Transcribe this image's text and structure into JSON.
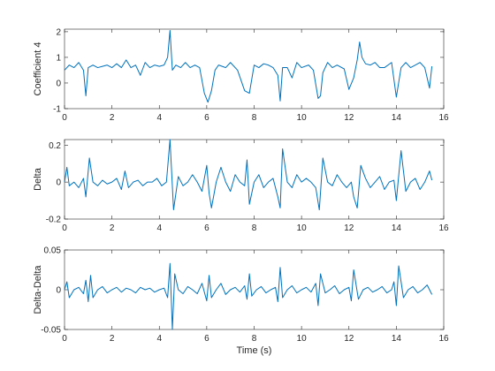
{
  "figure": {
    "background": "#ffffff",
    "line_color": "#0072BD"
  },
  "chart_data": [
    {
      "type": "line",
      "xlabel": "",
      "ylabel": "Coefficient 4",
      "xlim": [
        0,
        16
      ],
      "ylim": [
        -1,
        2.1
      ],
      "xticks": [
        0,
        2,
        4,
        6,
        8,
        10,
        12,
        14,
        16
      ],
      "yticks": [
        -1,
        0,
        1,
        2
      ],
      "xtick_labels": [
        "0",
        "2",
        "4",
        "6",
        "8",
        "10",
        "12",
        "14",
        "16"
      ],
      "ytick_labels": [
        "-1",
        "0",
        "1",
        "2"
      ],
      "grid": false,
      "series": [
        {
          "x": [
            0,
            0.2,
            0.4,
            0.6,
            0.8,
            0.9,
            1.0,
            1.2,
            1.4,
            1.6,
            1.8,
            2.0,
            2.2,
            2.4,
            2.6,
            2.8,
            3.0,
            3.2,
            3.4,
            3.6,
            3.8,
            4.0,
            4.2,
            4.35,
            4.45,
            4.55,
            4.7,
            4.9,
            5.1,
            5.3,
            5.5,
            5.7,
            5.9,
            6.05,
            6.2,
            6.35,
            6.5,
            6.8,
            7.0,
            7.3,
            7.6,
            7.8,
            8.0,
            8.2,
            8.4,
            8.6,
            8.8,
            9.0,
            9.1,
            9.2,
            9.4,
            9.6,
            9.8,
            10.0,
            10.3,
            10.5,
            10.7,
            10.8,
            10.9,
            11.1,
            11.3,
            11.5,
            11.8,
            12.0,
            12.2,
            12.35,
            12.45,
            12.55,
            12.7,
            12.9,
            13.1,
            13.3,
            13.5,
            13.8,
            14.0,
            14.2,
            14.4,
            14.6,
            14.8,
            15.0,
            15.2,
            15.4,
            15.5
          ],
          "y": [
            0.5,
            0.7,
            0.6,
            0.8,
            0.5,
            -0.5,
            0.6,
            0.7,
            0.6,
            0.65,
            0.7,
            0.6,
            0.75,
            0.6,
            0.9,
            0.6,
            0.7,
            0.3,
            0.8,
            0.6,
            0.7,
            0.65,
            0.7,
            1.0,
            2.05,
            0.5,
            0.7,
            0.6,
            0.8,
            0.6,
            0.7,
            0.6,
            -0.4,
            -0.75,
            -0.3,
            0.5,
            0.7,
            0.6,
            0.8,
            0.5,
            -0.3,
            -0.4,
            0.7,
            0.6,
            0.75,
            0.7,
            0.6,
            0.3,
            -0.7,
            0.6,
            0.6,
            0.2,
            0.8,
            0.6,
            0.7,
            0.5,
            -0.6,
            -0.5,
            0.4,
            0.8,
            0.6,
            0.7,
            0.55,
            -0.25,
            0.2,
            0.9,
            1.6,
            1.0,
            0.75,
            0.7,
            0.8,
            0.6,
            0.6,
            0.8,
            -0.55,
            0.6,
            0.8,
            0.6,
            0.7,
            0.8,
            0.6,
            -0.2,
            0.65
          ]
        }
      ]
    },
    {
      "type": "line",
      "xlabel": "",
      "ylabel": "Delta",
      "xlim": [
        0,
        16
      ],
      "ylim": [
        -0.2,
        0.23
      ],
      "xticks": [
        0,
        2,
        4,
        6,
        8,
        10,
        12,
        14,
        16
      ],
      "yticks": [
        -0.2,
        0,
        0.2
      ],
      "xtick_labels": [
        "0",
        "2",
        "4",
        "6",
        "8",
        "10",
        "12",
        "14",
        "16"
      ],
      "ytick_labels": [
        "-0.2",
        "0",
        "0.2"
      ],
      "grid": false,
      "series": [
        {
          "x": [
            0,
            0.1,
            0.2,
            0.4,
            0.6,
            0.8,
            0.9,
            1.05,
            1.2,
            1.4,
            1.6,
            1.8,
            2.0,
            2.2,
            2.4,
            2.55,
            2.7,
            2.9,
            3.1,
            3.3,
            3.5,
            3.7,
            3.9,
            4.1,
            4.3,
            4.45,
            4.6,
            4.8,
            5.0,
            5.2,
            5.4,
            5.6,
            5.8,
            6.0,
            6.1,
            6.2,
            6.4,
            6.6,
            6.8,
            7.0,
            7.2,
            7.4,
            7.6,
            7.7,
            7.8,
            8.0,
            8.2,
            8.4,
            8.6,
            8.8,
            9.0,
            9.1,
            9.2,
            9.4,
            9.6,
            9.8,
            10.0,
            10.2,
            10.4,
            10.6,
            10.75,
            10.9,
            11.1,
            11.3,
            11.5,
            11.7,
            11.9,
            12.1,
            12.2,
            12.35,
            12.5,
            12.7,
            12.9,
            13.1,
            13.3,
            13.5,
            13.7,
            13.9,
            14.0,
            14.2,
            14.4,
            14.6,
            14.8,
            15.0,
            15.2,
            15.4,
            15.5
          ],
          "y": [
            0.0,
            0.08,
            -0.02,
            0.0,
            -0.03,
            0.02,
            -0.08,
            0.13,
            0.0,
            -0.02,
            0.01,
            -0.01,
            0.0,
            0.02,
            -0.04,
            0.06,
            -0.03,
            0.0,
            0.01,
            -0.02,
            0.0,
            0.0,
            0.02,
            -0.02,
            0.0,
            0.23,
            -0.15,
            0.03,
            -0.02,
            0.0,
            0.04,
            0.0,
            -0.05,
            0.09,
            -0.06,
            -0.14,
            0.0,
            0.08,
            0.0,
            -0.05,
            0.04,
            0.0,
            -0.02,
            0.12,
            -0.12,
            0.0,
            0.04,
            -0.03,
            0.0,
            0.02,
            -0.08,
            -0.14,
            0.18,
            0.0,
            -0.03,
            0.04,
            0.0,
            0.02,
            0.0,
            -0.03,
            -0.15,
            0.13,
            0.0,
            -0.02,
            0.04,
            0.0,
            -0.03,
            0.0,
            -0.08,
            -0.14,
            0.09,
            0.02,
            -0.03,
            0.0,
            0.03,
            -0.04,
            0.0,
            0.01,
            -0.1,
            0.17,
            -0.05,
            0.0,
            0.02,
            -0.04,
            0.0,
            0.06,
            0.01
          ]
        }
      ]
    },
    {
      "type": "line",
      "xlabel": "Time (s)",
      "ylabel": "Delta-Delta",
      "xlim": [
        0,
        16
      ],
      "ylim": [
        -0.05,
        0.05
      ],
      "xticks": [
        0,
        2,
        4,
        6,
        8,
        10,
        12,
        14,
        16
      ],
      "yticks": [
        -0.05,
        0,
        0.05
      ],
      "xtick_labels": [
        "0",
        "2",
        "4",
        "6",
        "8",
        "10",
        "12",
        "14",
        "16"
      ],
      "ytick_labels": [
        "-0.05",
        "0",
        "0.05"
      ],
      "grid": false,
      "series": [
        {
          "x": [
            0,
            0.1,
            0.2,
            0.4,
            0.6,
            0.8,
            0.9,
            1.0,
            1.1,
            1.2,
            1.4,
            1.6,
            1.8,
            2.0,
            2.2,
            2.4,
            2.6,
            2.8,
            3.0,
            3.2,
            3.4,
            3.6,
            3.8,
            4.0,
            4.2,
            4.35,
            4.45,
            4.55,
            4.65,
            4.8,
            5.0,
            5.2,
            5.4,
            5.6,
            5.8,
            6.0,
            6.1,
            6.2,
            6.4,
            6.6,
            6.8,
            7.0,
            7.2,
            7.4,
            7.6,
            7.7,
            7.8,
            7.9,
            8.1,
            8.3,
            8.5,
            8.7,
            8.9,
            9.0,
            9.1,
            9.2,
            9.4,
            9.6,
            9.8,
            10.0,
            10.2,
            10.4,
            10.6,
            10.7,
            10.8,
            11.0,
            11.2,
            11.4,
            11.6,
            11.8,
            12.0,
            12.1,
            12.2,
            12.4,
            12.6,
            12.8,
            13.0,
            13.2,
            13.4,
            13.6,
            13.8,
            13.9,
            14.0,
            14.1,
            14.3,
            14.5,
            14.7,
            14.9,
            15.1,
            15.3,
            15.5
          ],
          "y": [
            0.0,
            0.01,
            -0.01,
            0.0,
            0.003,
            -0.005,
            0.012,
            -0.015,
            0.018,
            -0.01,
            0.0,
            0.004,
            -0.004,
            0.0,
            0.003,
            -0.003,
            0.002,
            0.0,
            -0.004,
            0.003,
            0.0,
            0.002,
            -0.003,
            0.0,
            0.002,
            -0.01,
            0.033,
            -0.05,
            0.02,
            0.0,
            -0.005,
            0.004,
            0.0,
            -0.005,
            0.008,
            -0.014,
            0.018,
            -0.01,
            0.0,
            0.008,
            -0.006,
            0.0,
            0.003,
            -0.003,
            0.005,
            -0.012,
            0.02,
            -0.008,
            0.0,
            0.004,
            -0.004,
            0.0,
            0.003,
            -0.015,
            0.028,
            -0.01,
            0.0,
            0.005,
            -0.004,
            0.0,
            0.003,
            -0.003,
            0.008,
            -0.02,
            0.02,
            -0.004,
            0.0,
            0.005,
            -0.005,
            0.0,
            0.003,
            -0.014,
            0.025,
            -0.012,
            0.0,
            0.003,
            -0.003,
            0.0,
            0.004,
            -0.004,
            0.0,
            0.01,
            -0.02,
            0.03,
            -0.01,
            0.0,
            0.004,
            -0.004,
            0.0,
            0.006,
            -0.006
          ]
        }
      ]
    }
  ]
}
